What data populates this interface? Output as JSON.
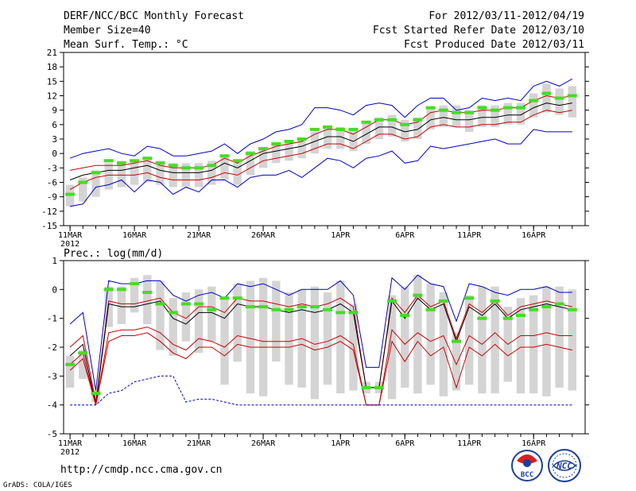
{
  "header": {
    "title": "DERF/NCC/BCC Monthly Forecast",
    "member_size": "Member Size=40",
    "period": "For 2012/03/11-2012/04/19",
    "fcst_start": "Fcst Started Refer Date 2012/03/10",
    "fcst_produced": "Fcst Produced Date 2012/03/11"
  },
  "footer": {
    "url": "http://cmdp.ncc.cma.gov.cn",
    "credit": "GrADS: COLA/IGES",
    "logo_bcc": "BCC",
    "logo_ncc": "NCC"
  },
  "colors": {
    "box": "#d4d4d4",
    "max_min": "#0000cc",
    "pct": "#cc0000",
    "median": "#000000",
    "obs": "#44dd22"
  },
  "chart_data": [
    {
      "type": "box-ensemble",
      "title": "Mean Surf. Temp.: °C",
      "xlabel": "",
      "ylabel": "Mean Surf. Temp.: °C",
      "ylim": [
        -15,
        21
      ],
      "yticks": [
        -15,
        -12,
        -9,
        -6,
        -3,
        0,
        3,
        6,
        9,
        12,
        15,
        18,
        21
      ],
      "xticks": [
        {
          "day": 1,
          "label": "11MAR",
          "sub": "2012"
        },
        {
          "day": 6,
          "label": "16MAR"
        },
        {
          "day": 11,
          "label": "21MAR"
        },
        {
          "day": 16,
          "label": "26MAR"
        },
        {
          "day": 22,
          "label": "1APR"
        },
        {
          "day": 27,
          "label": "6APR"
        },
        {
          "day": 32,
          "label": "11APR"
        },
        {
          "day": 37,
          "label": "16APR"
        }
      ],
      "days": [
        1,
        2,
        3,
        4,
        5,
        6,
        7,
        8,
        9,
        10,
        11,
        12,
        13,
        14,
        15,
        16,
        17,
        18,
        19,
        20,
        21,
        22,
        23,
        24,
        25,
        26,
        27,
        28,
        29,
        30,
        31,
        32,
        33,
        34,
        35,
        36,
        37,
        38,
        39,
        40
      ],
      "box_top": [
        -6.5,
        -5,
        -3.5,
        -2,
        -1.5,
        -1.5,
        -1,
        -1.5,
        -2,
        -2,
        -2,
        -1.5,
        -0.5,
        -1.5,
        0.5,
        1,
        2,
        2.5,
        3,
        4.5,
        5.5,
        5.5,
        5,
        6.5,
        7.5,
        8,
        7,
        7.5,
        9.5,
        10,
        10,
        9,
        10,
        10,
        10.5,
        10.5,
        12.5,
        14.5,
        13.5,
        14
      ],
      "box_bottom": [
        -11,
        -10,
        -9,
        -7.5,
        -7,
        -6.5,
        -6,
        -6.5,
        -7,
        -7,
        -7,
        -6.5,
        -5.5,
        -6.5,
        -4.5,
        -3,
        -2,
        -1.5,
        -1,
        0,
        1,
        1,
        0.5,
        2,
        3,
        3.5,
        2.5,
        3,
        5,
        5.5,
        5.5,
        4.5,
        5.5,
        5.5,
        6,
        6,
        7.5,
        8.5,
        8,
        7.5
      ],
      "series": [
        {
          "name": "max",
          "values": [
            -1,
            0,
            0.5,
            1,
            0,
            -0.5,
            1.5,
            1,
            -0.5,
            -0.5,
            0,
            0.5,
            2,
            0,
            2,
            3,
            4.5,
            5,
            6,
            9.5,
            9.5,
            9,
            8,
            10,
            10.5,
            10,
            7.5,
            10,
            11.5,
            11.5,
            9,
            9.5,
            11.5,
            11,
            11.5,
            11,
            14,
            15,
            14,
            15.5
          ]
        },
        {
          "name": "p80",
          "values": [
            -3.5,
            -3,
            -2.5,
            -2.5,
            -2.5,
            -2,
            -1.5,
            -2.5,
            -3,
            -3,
            -3,
            -2.5,
            -1,
            -2,
            -0.5,
            0.5,
            1.5,
            2,
            2.5,
            4,
            5,
            5,
            4,
            5.5,
            7,
            7,
            6,
            6.5,
            8.5,
            9,
            8.5,
            8.5,
            9,
            9,
            9.5,
            9.5,
            11,
            12,
            11.5,
            12
          ]
        },
        {
          "name": "median",
          "values": [
            -5.5,
            -4.5,
            -4,
            -3.5,
            -3.5,
            -3,
            -2.5,
            -3.5,
            -4,
            -4,
            -4,
            -3.5,
            -2,
            -3,
            -1.5,
            0,
            0.5,
            1,
            1.5,
            2.5,
            3.5,
            3.5,
            2.5,
            4,
            5.5,
            5.5,
            4.5,
            5,
            7,
            7.5,
            7,
            7,
            7.5,
            7.5,
            8,
            8,
            9.5,
            10.5,
            10,
            10.5
          ]
        },
        {
          "name": "p20",
          "values": [
            -7.5,
            -6,
            -5,
            -4.5,
            -4.5,
            -4.5,
            -4,
            -5,
            -5.5,
            -5.5,
            -5.5,
            -5,
            -4,
            -4.5,
            -3,
            -1.5,
            -1,
            -0.5,
            0,
            1,
            2,
            2,
            1,
            2.5,
            4,
            4,
            3,
            3.5,
            5.5,
            6,
            5.5,
            5.5,
            6,
            6,
            6.5,
            6.5,
            8,
            9,
            8.5,
            9
          ]
        },
        {
          "name": "min",
          "values": [
            -11,
            -10.5,
            -7,
            -6.5,
            -5.5,
            -8,
            -5.5,
            -6,
            -8.5,
            -7,
            -8,
            -5.5,
            -5.5,
            -7,
            -5,
            -4.5,
            -4.5,
            -3.5,
            -5,
            -3,
            -1,
            -1.5,
            -3,
            -1,
            -0.5,
            0.5,
            -2,
            -1.5,
            1.5,
            1,
            1.5,
            2,
            2.5,
            3,
            2,
            2,
            5,
            4.5,
            4.5,
            4.5
          ]
        },
        {
          "name": "obs",
          "values": [
            -8.5,
            -6,
            -4,
            -1.5,
            -2,
            -1.5,
            -1,
            -2,
            -2.5,
            -3,
            -3,
            -2.5,
            -0.5,
            -1.5,
            0,
            1,
            2,
            2.5,
            3,
            5,
            5.5,
            5,
            5,
            6.5,
            7,
            7,
            6,
            7,
            9.5,
            9,
            8.5,
            8.5,
            9.5,
            9,
            9.5,
            9.5,
            11,
            12.5,
            11.5,
            12
          ]
        }
      ]
    },
    {
      "type": "box-ensemble",
      "title": "Prec.: log(mm/d)",
      "xlabel": "",
      "ylabel": "Prec.: log(mm/d)",
      "ylim": [
        -5,
        1
      ],
      "yticks": [
        -5,
        -4,
        -3,
        -2,
        -1,
        0,
        1
      ],
      "xticks": [
        {
          "day": 1,
          "label": "11MAR",
          "sub": "2012"
        },
        {
          "day": 6,
          "label": "16MAR"
        },
        {
          "day": 11,
          "label": "21MAR"
        },
        {
          "day": 16,
          "label": "26MAR"
        },
        {
          "day": 22,
          "label": "1APR"
        },
        {
          "day": 27,
          "label": "6APR"
        },
        {
          "day": 32,
          "label": "11APR"
        },
        {
          "day": 37,
          "label": "16APR"
        }
      ],
      "days": [
        1,
        2,
        3,
        4,
        5,
        6,
        7,
        8,
        9,
        10,
        11,
        12,
        13,
        14,
        15,
        16,
        17,
        18,
        19,
        20,
        21,
        22,
        23,
        24,
        25,
        26,
        27,
        28,
        29,
        30,
        31,
        32,
        33,
        34,
        35,
        36,
        37,
        38,
        39,
        40
      ],
      "box_top": [
        -2.3,
        -2.1,
        -3.5,
        0.1,
        0.1,
        0.4,
        0.5,
        0.3,
        -0.3,
        -0.1,
        0,
        0.1,
        -0.3,
        0.2,
        0.3,
        0.4,
        0.3,
        -0.1,
        0,
        0.1,
        -0.1,
        0.3,
        -0.5,
        -3.2,
        -3.2,
        -0.2,
        0.1,
        0.5,
        0.2,
        -0.1,
        -1.5,
        -0.2,
        0.1,
        0.1,
        -0.6,
        -0.3,
        -0.2,
        0.1,
        0.1,
        0
      ],
      "box_bottom": [
        -3.4,
        -3.1,
        -3.9,
        -1.3,
        -1.2,
        -0.8,
        -1.2,
        -2.1,
        -2.3,
        -1.8,
        -2.2,
        -1.8,
        -3.3,
        -2.5,
        -3.6,
        -3.7,
        -2.5,
        -3.3,
        -3.4,
        -3.8,
        -3.3,
        -3.6,
        -3.5,
        -3.6,
        -3.6,
        -3.8,
        -3.4,
        -3.6,
        -3.3,
        -3.7,
        -3.5,
        -3.3,
        -3.6,
        -3.6,
        -3.2,
        -3.6,
        -3.6,
        -3.7,
        -3.4,
        -3.5
      ],
      "series": [
        {
          "name": "max",
          "values": [
            -1.2,
            -0.8,
            -3.5,
            0.3,
            0.2,
            0.2,
            0.3,
            0.3,
            -0.2,
            -0.4,
            -0.2,
            -0.1,
            -0.3,
            0.2,
            0.1,
            0.2,
            0,
            -0.2,
            0,
            0,
            0,
            0.3,
            -0.2,
            -2.7,
            -2.7,
            0.4,
            0,
            0.5,
            0.2,
            0.1,
            -1.1,
            0.2,
            0.1,
            -0.1,
            -0.2,
            0,
            0,
            0.1,
            -0.1,
            -0.1
          ]
        },
        {
          "name": "p80",
          "values": [
            -2,
            -1.6,
            -3.9,
            -0.4,
            -0.5,
            -0.5,
            -0.4,
            -0.3,
            -0.8,
            -1,
            -0.6,
            -0.6,
            -0.8,
            -0.3,
            -0.4,
            -0.4,
            -0.5,
            -0.6,
            -0.5,
            -0.6,
            -0.5,
            -0.3,
            -0.6,
            -3.4,
            -3.4,
            -0.3,
            -0.8,
            -0.2,
            -0.6,
            -0.4,
            -1.7,
            -0.5,
            -0.8,
            -0.4,
            -0.9,
            -0.6,
            -0.5,
            -0.4,
            -0.5,
            -0.6
          ]
        },
        {
          "name": "median",
          "values": [
            -2.3,
            -1.9,
            -4,
            -0.5,
            -0.6,
            -0.6,
            -0.5,
            -0.4,
            -1,
            -1.2,
            -0.8,
            -0.8,
            -1,
            -0.5,
            -0.6,
            -0.6,
            -0.7,
            -0.8,
            -0.7,
            -0.8,
            -0.7,
            -0.5,
            -0.8,
            -3.4,
            -3.4,
            -0.4,
            -1,
            -0.3,
            -0.7,
            -0.5,
            -1.8,
            -0.6,
            -0.9,
            -0.5,
            -1,
            -0.7,
            -0.6,
            -0.5,
            -0.6,
            -0.7
          ]
        },
        {
          "name": "p20",
          "values": [
            -2.6,
            -2.2,
            -4,
            -1.5,
            -1.4,
            -1.4,
            -1.3,
            -1.5,
            -1.9,
            -2.1,
            -1.7,
            -1.8,
            -2,
            -1.6,
            -1.7,
            -1.8,
            -1.8,
            -1.8,
            -1.7,
            -1.9,
            -1.8,
            -1.6,
            -1.9,
            -4,
            -4,
            -1.4,
            -1.9,
            -1.5,
            -1.8,
            -1.6,
            -2.6,
            -1.6,
            -1.9,
            -1.5,
            -1.9,
            -1.6,
            -1.6,
            -1.5,
            -1.6,
            -1.6
          ]
        },
        {
          "name": "p10",
          "values": [
            -2.8,
            -2.4,
            -4,
            -1.8,
            -1.6,
            -1.6,
            -1.5,
            -1.8,
            -2.2,
            -2.4,
            -2,
            -2,
            -2.3,
            -1.9,
            -2,
            -2,
            -2,
            -2,
            -1.9,
            -2.1,
            -2,
            -1.8,
            -2.1,
            -4,
            -4,
            -1.8,
            -2.5,
            -1.8,
            -2.3,
            -2,
            -3.4,
            -2,
            -2.3,
            -1.9,
            -2.3,
            -2,
            -2,
            -1.9,
            -2,
            -2.1
          ]
        },
        {
          "name": "min",
          "values": [
            -4,
            -4,
            -4,
            -3.6,
            -3.5,
            -3.2,
            -3.1,
            -3,
            -3,
            -3.9,
            -3.8,
            -3.8,
            -3.9,
            -4,
            -4,
            -4,
            -4,
            -4,
            -4,
            -4,
            -4,
            -4,
            -4,
            -4,
            -4,
            -4,
            -4,
            -4,
            -4,
            -4,
            -4,
            -4,
            -4,
            -4,
            -4,
            -4,
            -4,
            -4,
            -4,
            -4
          ]
        },
        {
          "name": "obs",
          "values": [
            -2.6,
            -2.2,
            -3.6,
            0,
            0,
            0.2,
            -0.1,
            -0.5,
            -0.8,
            -0.5,
            -0.5,
            -0.7,
            -0.3,
            -0.3,
            -0.6,
            -0.6,
            -0.7,
            -0.7,
            -0.6,
            -0.6,
            -0.7,
            -0.8,
            -0.8,
            -3.4,
            -3.4,
            -0.4,
            -0.9,
            -0.2,
            -0.7,
            -0.4,
            -1.8,
            -0.3,
            -1,
            -0.4,
            -1,
            -0.9,
            -0.7,
            -0.6,
            -0.5,
            -0.7
          ]
        }
      ]
    }
  ]
}
